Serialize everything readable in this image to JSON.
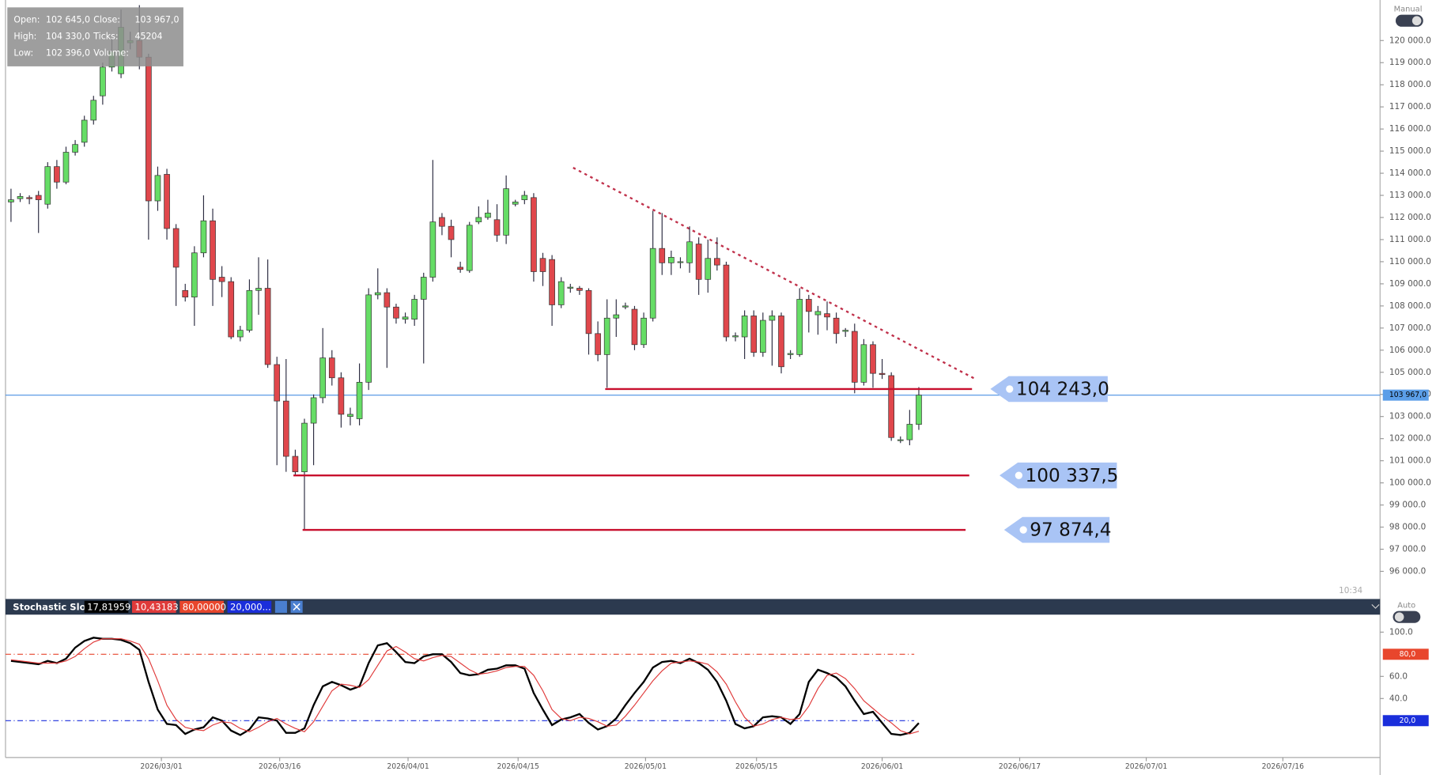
{
  "chart_data": [
    {
      "type": "candlestick",
      "open": [
        112700,
        112850,
        112900,
        113000,
        112600,
        114300,
        113600,
        114950,
        115400,
        116400,
        117500,
        118800,
        118500,
        119900,
        120000,
        119250,
        112750,
        113950,
        111500,
        108700,
        108400,
        110400,
        111850,
        109300,
        109100,
        106600,
        106900,
        108700,
        108800,
        105350,
        103700,
        101200,
        100500,
        102700,
        103850,
        105650,
        104750,
        103000,
        102900,
        104550,
        108500,
        108600,
        107950,
        107400,
        107400,
        108300,
        109300,
        112000,
        111600,
        109750,
        109600,
        111800,
        112000,
        111900,
        111200,
        112600,
        112800,
        112900,
        110150,
        110100,
        108050,
        108800,
        108800,
        108700,
        106750,
        105800,
        107450,
        107950,
        107850,
        106250,
        107450,
        110600,
        109950,
        110000,
        109950,
        110800,
        109200,
        110150,
        109850,
        106600,
        106600,
        107550,
        105900,
        107350,
        107550,
        105800,
        105800,
        108300,
        107600,
        107650,
        107450,
        106850,
        106850,
        104550,
        106250,
        104950,
        104850,
        101950,
        101950,
        102645
      ],
      "high": [
        113300,
        113100,
        113000,
        113200,
        114500,
        114600,
        115200,
        115500,
        116600,
        117500,
        119000,
        120100,
        121400,
        120400,
        121600,
        119400,
        114300,
        114200,
        111700,
        109000,
        110700,
        113000,
        112400,
        109800,
        109300,
        107100,
        109200,
        110200,
        110100,
        105700,
        105600,
        101500,
        102900,
        104000,
        107000,
        106000,
        105000,
        103400,
        105400,
        108800,
        109700,
        108800,
        108100,
        107700,
        108500,
        109500,
        114600,
        112200,
        111900,
        110000,
        111800,
        112500,
        112800,
        112600,
        113900,
        112800,
        113200,
        113100,
        110400,
        110300,
        109300,
        109000,
        108900,
        108800,
        107300,
        108300,
        108300,
        108150,
        108000,
        107700,
        112300,
        112200,
        110500,
        110200,
        111600,
        111100,
        111000,
        111100,
        110000,
        106800,
        107800,
        107800,
        107700,
        107800,
        107700,
        106000,
        108800,
        108500,
        108000,
        108200,
        107700,
        107000,
        107200,
        106500,
        106400,
        105600,
        105000,
        102100,
        103300,
        104330
      ],
      "low": [
        111800,
        112700,
        112600,
        111300,
        112400,
        113300,
        113500,
        114800,
        115200,
        116200,
        117100,
        118600,
        118300,
        119600,
        118700,
        111000,
        112300,
        111000,
        108000,
        108200,
        107100,
        110200,
        108000,
        108400,
        106500,
        106400,
        106800,
        107600,
        105200,
        100800,
        100500,
        100337.5,
        97874.4,
        100800,
        103600,
        104400,
        102500,
        102600,
        102600,
        104200,
        108300,
        105200,
        107200,
        107200,
        107100,
        105400,
        109100,
        111200,
        110200,
        109500,
        109500,
        111700,
        111900,
        110900,
        110800,
        112500,
        112600,
        109100,
        108900,
        107100,
        107900,
        108600,
        108500,
        105800,
        105500,
        104300,
        106600,
        107850,
        106000,
        106100,
        107300,
        109400,
        109400,
        109700,
        109500,
        108500,
        108600,
        109600,
        106400,
        106400,
        105600,
        105700,
        105700,
        105300,
        104950,
        105600,
        105700,
        106800,
        106700,
        106900,
        106300,
        106600,
        104050,
        104400,
        104300,
        104700,
        101900,
        101800,
        101700,
        102396
      ],
      "close": [
        112800,
        112950,
        112850,
        112800,
        114300,
        113600,
        114950,
        115300,
        116400,
        117300,
        118800,
        119500,
        120600,
        120000,
        119250,
        112750,
        113900,
        111500,
        109750,
        108400,
        110400,
        111850,
        109200,
        109100,
        106600,
        106900,
        108700,
        108800,
        105350,
        103700,
        101200,
        100500,
        102700,
        103850,
        105650,
        104750,
        103100,
        103100,
        104550,
        108500,
        108600,
        107950,
        107450,
        107500,
        108300,
        109300,
        111800,
        111600,
        111000,
        109650,
        111650,
        112000,
        112200,
        111200,
        113300,
        112700,
        113000,
        109550,
        109550,
        108050,
        109100,
        108850,
        108700,
        106750,
        105800,
        107450,
        107600,
        108000,
        106250,
        107450,
        110600,
        109950,
        110200,
        110000,
        110900,
        109200,
        110150,
        109850,
        106600,
        106650,
        107550,
        105900,
        107350,
        107550,
        105250,
        105850,
        108300,
        107750,
        107750,
        107500,
        106750,
        106900,
        104550,
        106250,
        104950,
        104900,
        102050,
        101950,
        102650,
        103967
      ],
      "up_color": "#66dd66",
      "down_color": "#e0474c",
      "ylim": [
        94833,
        121833
      ],
      "yticks": [
        {
          "value": 96000,
          "label": "96 000.0"
        },
        {
          "value": 97000,
          "label": "97 000.0"
        },
        {
          "value": 98000,
          "label": "98 000.0"
        },
        {
          "value": 99000,
          "label": "99 000.0"
        },
        {
          "value": 100000,
          "label": "100 000.0"
        },
        {
          "value": 101000,
          "label": "101 000.0"
        },
        {
          "value": 102000,
          "label": "102 000.0"
        },
        {
          "value": 103000,
          "label": "103 000.0"
        },
        {
          "value": 104000,
          "label": "104 000.0"
        },
        {
          "value": 105000,
          "label": "105 000.0"
        },
        {
          "value": 106000,
          "label": "106 000.0"
        },
        {
          "value": 107000,
          "label": "107 000.0"
        },
        {
          "value": 108000,
          "label": "108 000.0"
        },
        {
          "value": 109000,
          "label": "109 000.0"
        },
        {
          "value": 110000,
          "label": "110 000.0"
        },
        {
          "value": 111000,
          "label": "111 000.0"
        },
        {
          "value": 112000,
          "label": "112 000.0"
        },
        {
          "value": 113000,
          "label": "113 000.0"
        },
        {
          "value": 114000,
          "label": "114 000.0"
        },
        {
          "value": 115000,
          "label": "115 000.0"
        },
        {
          "value": 116000,
          "label": "116 000.0"
        },
        {
          "value": 117000,
          "label": "117 000.0"
        },
        {
          "value": 118000,
          "label": "118 000.0"
        },
        {
          "value": 119000,
          "label": "119 000.0"
        },
        {
          "value": 120000,
          "label": "120 000.0"
        }
      ],
      "xticks": [
        {
          "value": 16.4,
          "label": "2026/03/01"
        },
        {
          "value": 29.3,
          "label": "2026/03/16"
        },
        {
          "value": 43.3,
          "label": "2026/04/01"
        },
        {
          "value": 55.3,
          "label": "2026/04/15"
        },
        {
          "value": 69.2,
          "label": "2026/05/01"
        },
        {
          "value": 81.3,
          "label": "2026/05/15"
        },
        {
          "value": 95,
          "label": "2026/06/01"
        },
        {
          "value": 110,
          "label": "2026/06/17"
        },
        {
          "value": 123.8,
          "label": "2026/07/01"
        },
        {
          "value": 138.7,
          "label": "2026/07/16"
        }
      ],
      "info": [
        {
          "label": "Open:",
          "value": "102 645,0"
        },
        {
          "label": "Close:",
          "value": "103 967,0"
        },
        {
          "label": "High:",
          "value": "104 330,0"
        },
        {
          "label": "Ticks:",
          "value": "45204"
        },
        {
          "label": "Low:",
          "value": "102 396,0"
        },
        {
          "label": "Volume:"
        }
      ],
      "levels": [
        {
          "value": 104243,
          "label": "104 243,0"
        },
        {
          "value": 100337.5,
          "label": "100 337,5"
        },
        {
          "value": 97874.4,
          "label": "97 874,4"
        }
      ],
      "current": {
        "value": 103967,
        "label": "103 967,0"
      },
      "mode": "Manual",
      "time": "10:34"
    },
    {
      "type": "line",
      "title": "Stochastic Slow",
      "series": [
        {
          "color": "#000000",
          "label": "17,81959",
          "values": [
            74,
            73,
            72,
            71,
            74,
            72,
            76,
            86,
            92,
            95,
            94,
            94,
            93,
            90,
            84,
            55,
            30,
            17,
            16,
            8,
            12,
            14,
            23,
            20,
            11,
            7,
            12,
            23,
            22,
            20,
            9,
            9,
            13,
            34,
            51,
            55,
            52,
            48,
            51,
            72,
            88,
            90,
            82,
            73,
            72,
            78,
            80,
            80,
            73,
            63,
            61,
            62,
            66,
            67,
            70,
            70,
            67,
            45,
            30,
            16,
            21,
            23,
            26,
            18,
            12,
            15,
            22,
            34,
            45,
            55,
            68,
            73,
            74,
            72,
            76,
            72,
            66,
            55,
            38,
            17,
            13,
            15,
            23,
            24,
            23,
            17,
            26,
            55,
            66,
            63,
            59,
            51,
            38,
            26,
            28,
            18,
            8,
            7,
            9,
            17.81959
          ]
        },
        {
          "color": "#e03a3a",
          "label": "10,43183",
          "values": [
            75,
            74,
            73,
            72,
            72,
            72,
            74,
            78,
            85,
            91,
            94,
            94,
            94,
            92,
            89,
            76,
            56,
            34,
            21,
            14,
            12,
            11,
            16,
            19,
            18,
            13,
            10,
            14,
            19,
            22,
            17,
            13,
            10,
            19,
            33,
            47,
            53,
            52,
            50,
            57,
            70,
            83,
            87,
            82,
            76,
            74,
            77,
            79,
            78,
            72,
            66,
            62,
            63,
            65,
            68,
            69,
            69,
            61,
            47,
            30,
            22,
            20,
            23,
            22,
            19,
            15,
            16,
            24,
            34,
            45,
            56,
            65,
            72,
            73,
            74,
            73,
            71,
            64,
            53,
            37,
            23,
            15,
            17,
            21,
            23,
            21,
            22,
            33,
            49,
            61,
            63,
            58,
            49,
            38,
            31,
            24,
            18,
            11,
            8,
            10.43183
          ]
        }
      ],
      "levels": [
        {
          "value": 80,
          "label": "80,0",
          "header_label": "80,00000",
          "color": "#e8462c"
        },
        {
          "value": 20,
          "label": "20,0",
          "header_label": "20,000...",
          "color": "#1a2edb"
        }
      ],
      "ylim": [
        -13.3,
        115.8
      ],
      "yticks": [
        {
          "value": 100,
          "label": "100.0"
        },
        {
          "value": 60,
          "label": "60.0"
        },
        {
          "value": 40,
          "label": "40.0"
        }
      ],
      "mode": "Auto"
    }
  ]
}
